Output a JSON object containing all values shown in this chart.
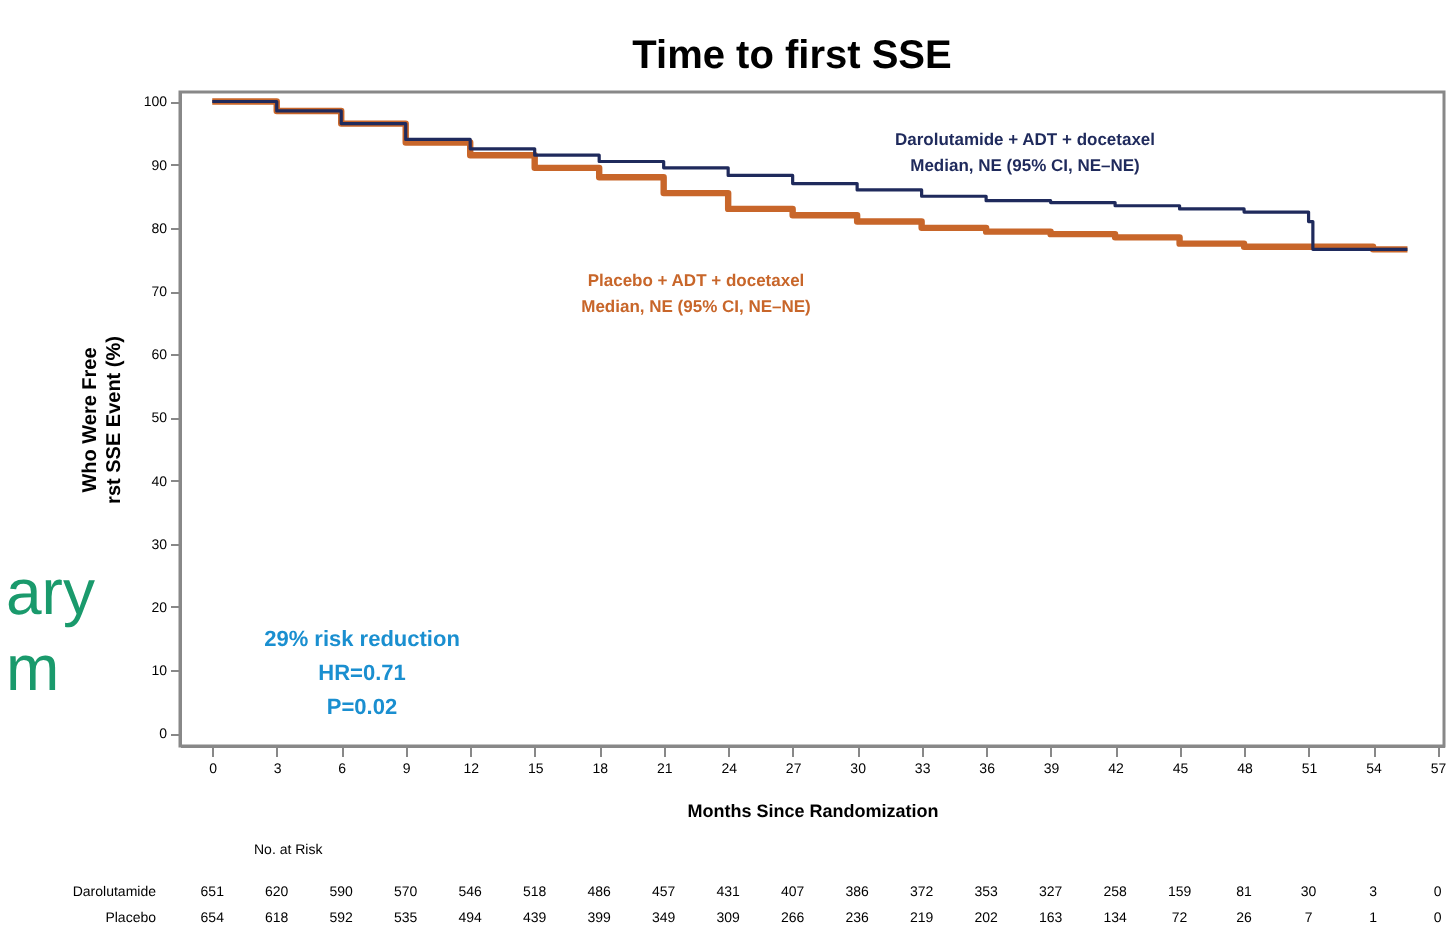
{
  "chart_data": {
    "type": "step",
    "title": "Time to first SSE",
    "xlabel": "Months Since Randomization",
    "ylabel": "Who Were Free\nrst SSE Event (%)",
    "xlim": [
      -1.5,
      57.3
    ],
    "ylim": [
      -2,
      101.5
    ],
    "xticks": [
      0,
      3,
      6,
      9,
      12,
      15,
      18,
      21,
      24,
      27,
      30,
      33,
      36,
      39,
      42,
      45,
      48,
      51,
      54,
      57
    ],
    "yticks": [
      0,
      10,
      20,
      30,
      40,
      50,
      60,
      70,
      80,
      90,
      100
    ],
    "grid": false,
    "series": [
      {
        "name": "Darolutamide + ADT + docetaxel\nMedian, NE (95% CI, NE–NE)",
        "color": "#1f2a5c",
        "x": [
          0,
          3,
          6,
          9,
          12,
          15,
          18,
          21,
          24,
          27,
          30,
          33,
          36,
          39,
          42,
          45,
          48,
          51,
          51.2,
          55.6
        ],
        "values": [
          100,
          98.5,
          96.5,
          94,
          92.5,
          91.5,
          90.5,
          89.5,
          88.3,
          87,
          86,
          85,
          84.3,
          84,
          83.5,
          83,
          82.5,
          81,
          76.6,
          76.6
        ]
      },
      {
        "name": "Placebo + ADT + docetaxel\nMedian, NE (95% CI, NE–NE)",
        "color": "#c8662a",
        "x": [
          0,
          3,
          6,
          9,
          12,
          15,
          18,
          21,
          24,
          27,
          30,
          33,
          36,
          39,
          42,
          45,
          48,
          51,
          54,
          55.6
        ],
        "values": [
          100,
          98.5,
          96.5,
          93.5,
          91.5,
          89.5,
          88,
          85.5,
          83,
          82,
          81,
          80,
          79.4,
          79,
          78.5,
          77.5,
          77,
          77,
          76.6,
          76.6
        ]
      }
    ],
    "annotations": [
      "29% risk reduction\nHR=0.71\nP=0.02",
      "No. at Risk",
      "Darolutamide 651 620 590 570 546 518 486 457 431 407 386 372 353 327 258 159 81 30 3 0",
      "Placebo 654 618 592 535 494 439 399 349 309 266 236 219 202 163 134 72 26 7 1 0",
      "ary\nm"
    ]
  }
}
